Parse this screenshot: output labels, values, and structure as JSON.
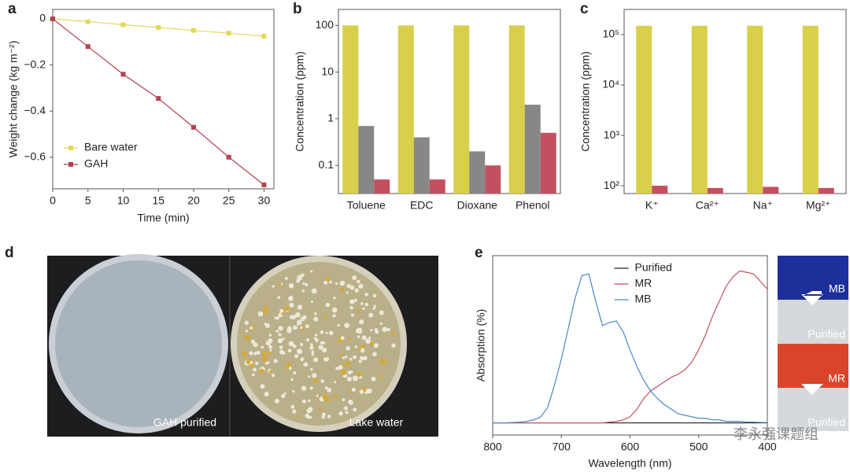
{
  "chart_data": [
    {
      "type": "line",
      "panel_label": "a",
      "x_label": "Time (min)",
      "y_label": "Weight change (kg m⁻²)",
      "x": [
        0,
        5,
        10,
        15,
        20,
        25,
        30
      ],
      "xlim": [
        0,
        31.4
      ],
      "xticks": [
        0,
        5,
        10,
        15,
        20,
        25,
        30
      ],
      "ylim": [
        -0.737,
        0.041
      ],
      "yticks": [
        0,
        {
          "value": -0.2,
          "label": "−0.2"
        },
        {
          "value": -0.4,
          "label": "−0.4"
        },
        {
          "value": -0.6,
          "label": "−0.6"
        }
      ],
      "markers": true,
      "legend": "lower left",
      "series": [
        {
          "name": "Bare water",
          "color": "#e2d85b",
          "values": [
            0,
            -0.012,
            -0.025,
            -0.037,
            -0.05,
            -0.062,
            -0.075
          ]
        },
        {
          "name": "GAH",
          "color": "#b4414f",
          "values": [
            0,
            -0.12,
            -0.24,
            -0.345,
            -0.47,
            -0.6,
            -0.72
          ]
        }
      ]
    },
    {
      "type": "bar",
      "panel_label": "b",
      "y_label": "Concentration (ppm)",
      "log_scale": true,
      "categories": [
        "Toluene",
        "EDC",
        "Dioxane",
        "Phenol"
      ],
      "ylim": [
        0.025,
        220
      ],
      "yticks": [
        0.1,
        1,
        10,
        100
      ],
      "series": [
        {
          "color": "#d8cf4b",
          "values": [
            100,
            100,
            100,
            100
          ]
        },
        {
          "color": "#878787",
          "values": [
            0.7,
            0.4,
            0.2,
            2
          ]
        },
        {
          "color": "#c4505f",
          "values": [
            0.05,
            0.05,
            0.1,
            0.5
          ]
        }
      ]
    },
    {
      "type": "bar",
      "panel_label": "c",
      "y_label": "Concentration (ppm)",
      "log_scale": true,
      "categories": [
        "K⁺",
        "Ca²⁺",
        "Na⁺",
        "Mg²⁺"
      ],
      "ylim": [
        70,
        316000
      ],
      "yticks": [
        {
          "value": 100,
          "label": "10²"
        },
        {
          "value": 1000,
          "label": "10³"
        },
        {
          "value": 10000,
          "label": "10⁴"
        },
        {
          "value": 100000,
          "label": "10⁵"
        }
      ],
      "series": [
        {
          "color": "#d8cf4b",
          "values": [
            150000,
            150000,
            150000,
            150000
          ]
        },
        {
          "color": "#c4505f",
          "values": [
            100,
            90,
            95,
            90
          ]
        }
      ]
    },
    {
      "type": "line",
      "panel_label": "e",
      "x_label": "Wavelength (nm)",
      "y_label": "Absorption (%)",
      "x": [
        800,
        790,
        780,
        770,
        760,
        750,
        740,
        730,
        720,
        710,
        700,
        690,
        680,
        670,
        660,
        650,
        640,
        630,
        620,
        610,
        600,
        590,
        580,
        570,
        560,
        550,
        540,
        530,
        520,
        510,
        500,
        490,
        480,
        470,
        460,
        450,
        440,
        430,
        420,
        410,
        400
      ],
      "xlim": [
        800,
        400
      ],
      "xticks": [
        800,
        700,
        600,
        500,
        400
      ],
      "ylim": [
        -8,
        110
      ],
      "markers": false,
      "legend": "upper center",
      "series": [
        {
          "name": "Purified",
          "color": "#222222",
          "values": [
            0,
            0,
            0,
            0,
            0,
            0,
            0,
            0,
            0,
            0,
            0,
            0,
            0,
            0,
            0,
            0,
            0,
            0,
            0,
            0,
            0,
            0,
            0,
            0,
            0,
            0,
            0,
            0,
            0,
            0,
            0,
            0,
            0,
            0,
            0,
            0,
            0,
            0,
            0,
            0,
            0
          ]
        },
        {
          "name": "MR",
          "color": "#c4505f",
          "values": [
            0,
            0,
            0,
            0,
            0,
            0,
            0,
            0,
            0,
            0,
            0,
            0,
            0,
            0,
            0,
            0,
            0,
            0.5,
            1,
            2,
            4,
            9,
            16,
            21,
            24,
            27,
            30,
            32,
            35,
            40,
            48,
            58,
            70,
            80,
            90,
            96,
            100,
            99,
            98,
            93,
            88
          ]
        },
        {
          "name": "MB",
          "color": "#4a86c5",
          "values": [
            0,
            0,
            0,
            0.3,
            0.5,
            1,
            2,
            4,
            10,
            25,
            42,
            62,
            82,
            97,
            98,
            80,
            64,
            66,
            67,
            60,
            48,
            37,
            28,
            21,
            16,
            12,
            9,
            6,
            5,
            4,
            3,
            3,
            2,
            2,
            1,
            1,
            1,
            0.5,
            0.5,
            0.3,
            0.2
          ]
        }
      ]
    }
  ],
  "photo_panel": {
    "panel_label": "d",
    "labels": [
      "GAH purified",
      "Lake water"
    ]
  },
  "image_strip": {
    "labels": [
      "MB",
      "Purified",
      "MR",
      "Purified"
    ]
  },
  "watermark": "李永强课题组"
}
